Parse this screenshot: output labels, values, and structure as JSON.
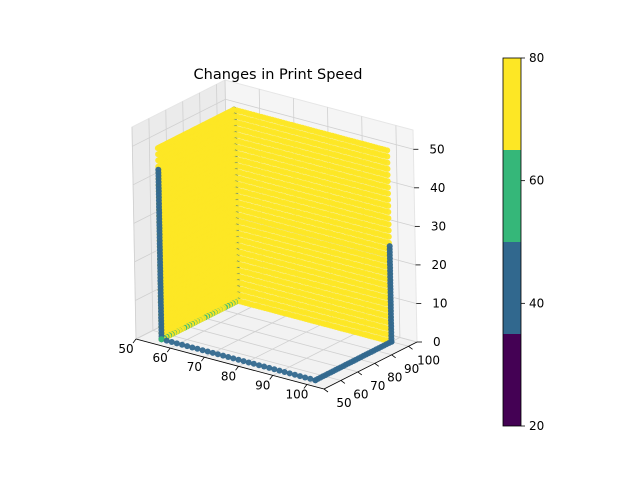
{
  "chart_data": {
    "type": "scatter3d",
    "title": "Changes in Print Speed",
    "xlabel": "",
    "ylabel": "",
    "zlabel": "",
    "xlim": [
      50,
      105
    ],
    "ylim": [
      50,
      105
    ],
    "zlim": [
      0,
      55
    ],
    "x_ticks": [
      "50",
      "60",
      "70",
      "80",
      "90",
      "100"
    ],
    "y_ticks": [
      "50",
      "60",
      "70",
      "80",
      "90",
      "100"
    ],
    "z_ticks": [
      "0",
      "10",
      "20",
      "30",
      "40",
      "50"
    ],
    "grid": true,
    "colorbar": {
      "ticks": [
        "20",
        "40",
        "60",
        "80"
      ],
      "range": [
        20,
        80
      ],
      "boundaries": [
        20,
        35,
        50,
        65,
        80
      ],
      "colors": [
        "#440154",
        "#31688e",
        "#35b779",
        "#fde725"
      ]
    },
    "series": [
      {
        "description": "back wall at y=100, x from 55 to 100",
        "plane": "y",
        "fixed": 100,
        "x_range": [
          55,
          100
        ],
        "z_range": [
          0,
          50
        ],
        "value": 80
      },
      {
        "description": "side wall at x=55, y from 55 to 100",
        "plane": "x",
        "fixed": 55,
        "y_range": [
          55,
          100
        ],
        "z_range": [
          0,
          50
        ],
        "value": 80
      },
      {
        "description": "vertical edge column at x=55, y=55",
        "x": 55,
        "y": 55,
        "z_range": [
          0,
          44
        ],
        "value": 42
      },
      {
        "description": "vertical edge column at x=55, y=100",
        "x": 55,
        "y": 100,
        "z_range": [
          0,
          50
        ],
        "value": 42
      },
      {
        "description": "vertical edge column at x=100, y=100",
        "x": 100,
        "y": 100,
        "z_range": [
          0,
          25
        ],
        "value": 42
      },
      {
        "description": "bottom row along x at y=55",
        "y": 55,
        "x_range": [
          55,
          100
        ],
        "z": 0,
        "value": 40
      },
      {
        "description": "bottom row along y at x=100",
        "x": 100,
        "y_range": [
          55,
          100
        ],
        "z": 0,
        "value": 40
      },
      {
        "description": "bottom row along y at x=55",
        "x": 55,
        "y_range": [
          55,
          100
        ],
        "z": 0,
        "value": 55
      }
    ]
  }
}
